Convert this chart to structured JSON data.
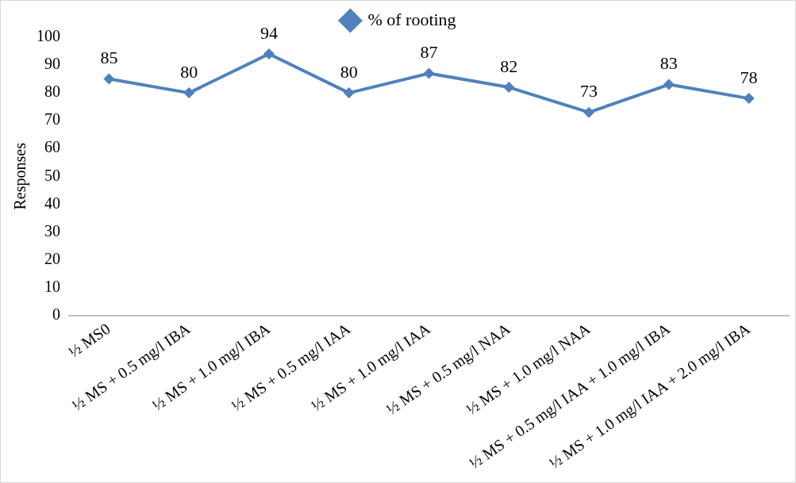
{
  "chart_data": {
    "type": "line",
    "ylabel": "Responses",
    "categories": [
      "½ MS0",
      "½ MS + 0.5 mg/l IBA",
      "½ MS + 1.0 mg/l IBA",
      "½ MS + 0.5 mg/l IAA",
      "½ MS + 1.0 mg/l IAA",
      "½ MS + 0.5 mg/l NAA",
      "½ MS + 1.0 mg/l NAA",
      "½ MS + 0.5 mg/l IAA + 1.0 mg/l IBA",
      "½ MS + 1.0 mg/l IAA + 2.0 mg/l IBA"
    ],
    "series": [
      {
        "name": "% of rooting",
        "color": "#4f81bd",
        "values": [
          85,
          80,
          94,
          80,
          87,
          82,
          73,
          83,
          78
        ]
      }
    ],
    "ylim": [
      0,
      100
    ],
    "yticks": [
      0,
      10,
      20,
      30,
      40,
      50,
      60,
      70,
      80,
      90,
      100
    ],
    "grid": false,
    "legend": "top",
    "marker": "diamond",
    "line_style": "solid",
    "data_labels": true
  }
}
